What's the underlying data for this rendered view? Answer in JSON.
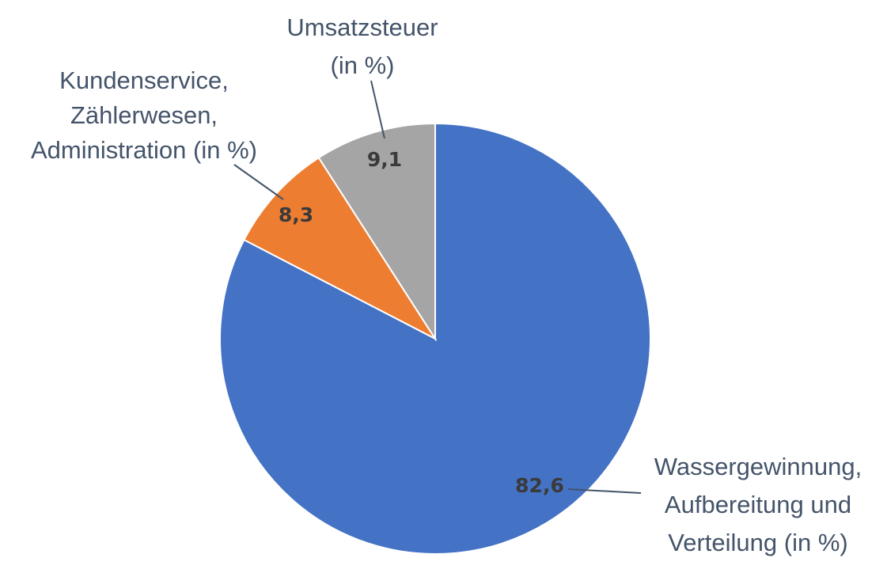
{
  "chart_data": {
    "type": "pie",
    "start_angle_deg": 0,
    "direction": "clockwise",
    "slices": [
      {
        "label_lines": [
          "Wassergewinnung,",
          "Aufbereitung und",
          "Verteilung (in %)"
        ],
        "value": 82.6,
        "value_label": "82,6",
        "color": "#4472c4"
      },
      {
        "label_lines": [
          "Kundenservice,",
          "Zählerwesen,",
          "Administration (in %)"
        ],
        "value": 8.3,
        "value_label": "8,3",
        "color": "#ed7d31"
      },
      {
        "label_lines": [
          "Umsatzsteuer",
          "(in %)"
        ],
        "value": 9.1,
        "value_label": "9,1",
        "color": "#a5a5a5"
      }
    ]
  }
}
